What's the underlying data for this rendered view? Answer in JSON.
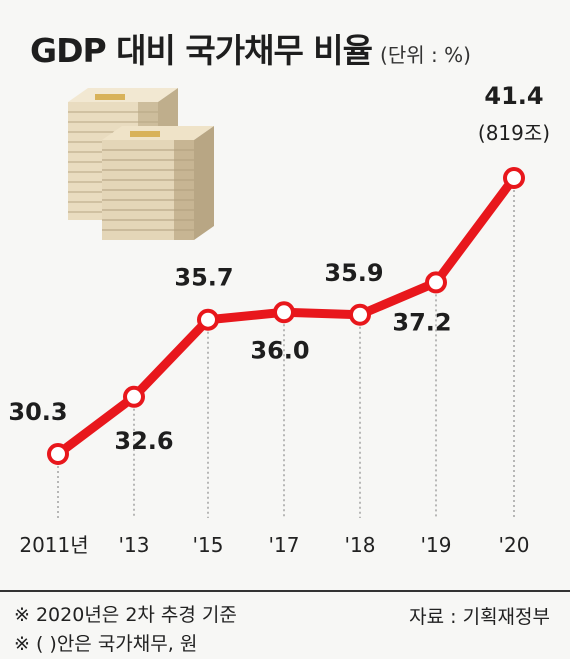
{
  "title": "GDP 대비 국가채무 비율",
  "unit": "(단위 : %)",
  "chart_data": {
    "type": "line",
    "categories": [
      "2011년",
      "'13",
      "'15",
      "'17",
      "'18",
      "'19",
      "'20"
    ],
    "values": [
      30.3,
      32.6,
      35.7,
      36.0,
      35.9,
      37.2,
      41.4
    ],
    "value_labels": [
      "30.3",
      "32.6",
      "35.7",
      "36.0",
      "35.9",
      "37.2",
      "41.4"
    ],
    "extra_label": "(819조)",
    "line_color": "#e8171c",
    "marker_fill": "#ffffff"
  },
  "notes": [
    "※ 2020년은 2차 추경 기준",
    "※ (   )안은 국가채무, 원"
  ],
  "source": "자료 : 기획재정부"
}
